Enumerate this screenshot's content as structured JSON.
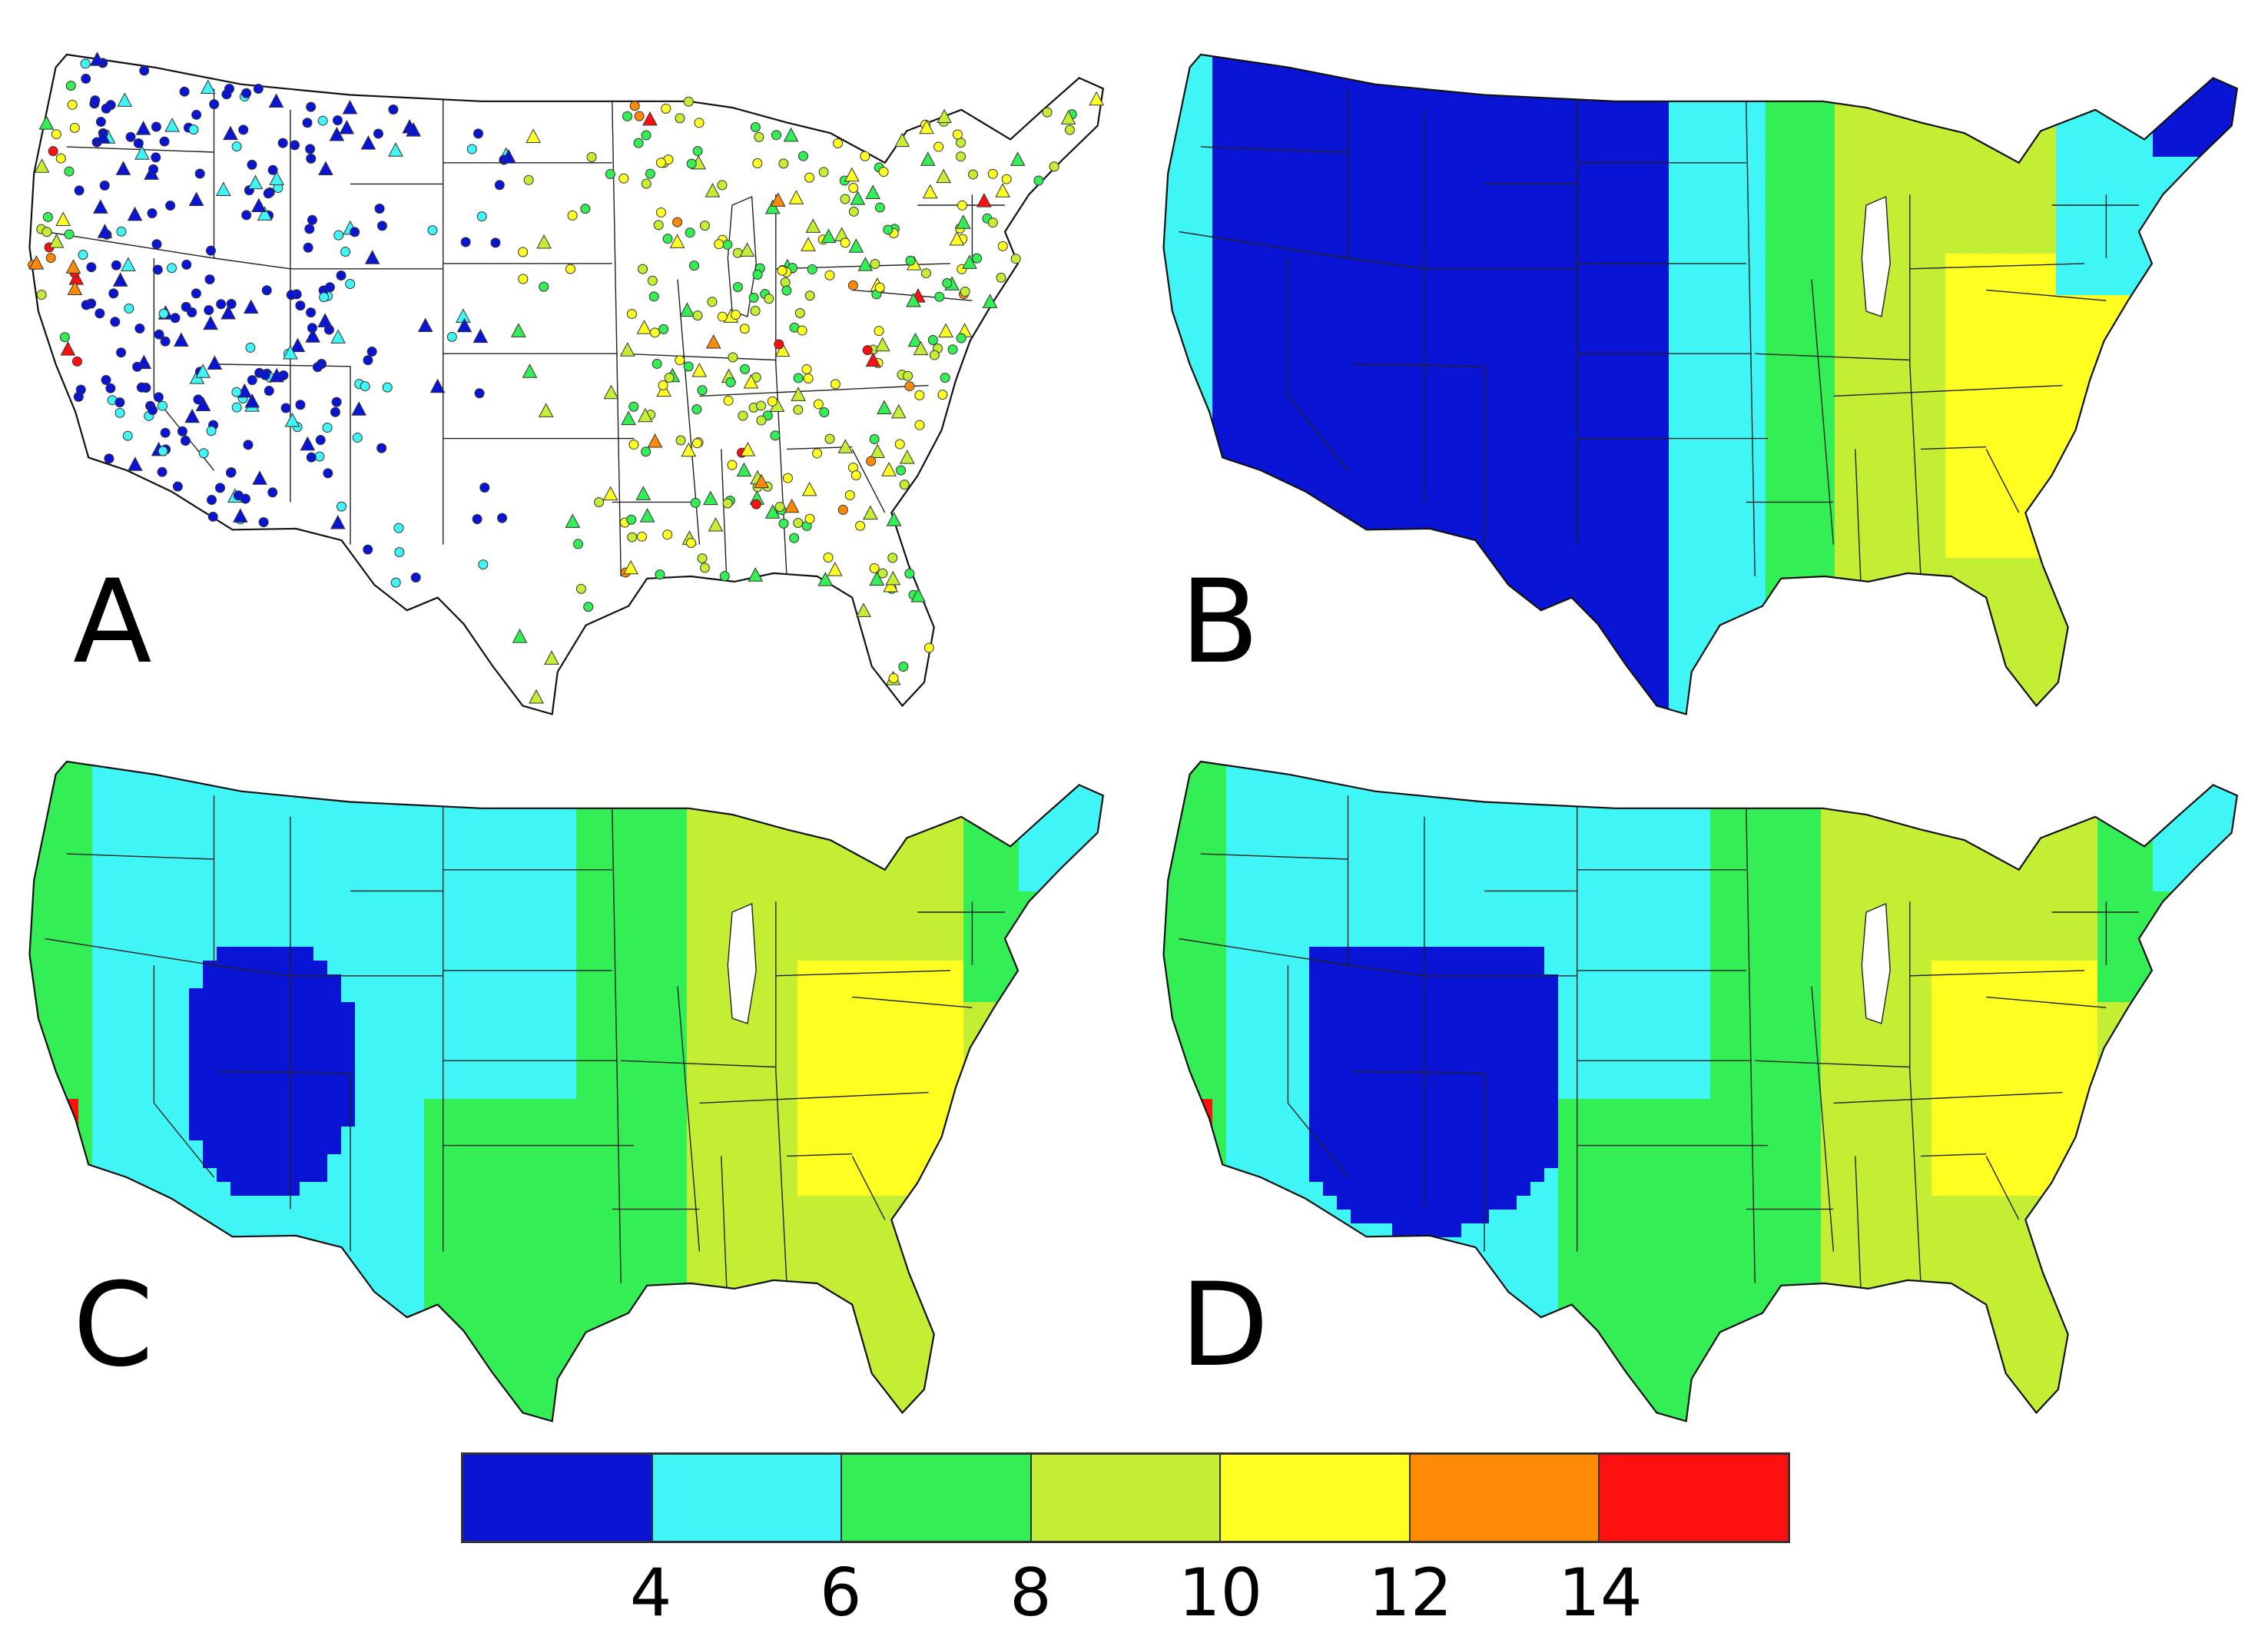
{
  "panels": [
    {
      "label": "A",
      "kind": "stations"
    },
    {
      "label": "B",
      "kind": "field"
    },
    {
      "label": "C",
      "kind": "field"
    },
    {
      "label": "D",
      "kind": "field"
    }
  ],
  "colorbar": {
    "colors": [
      "#0a14d4",
      "#3ff5f5",
      "#33ee55",
      "#c4ee33",
      "#ffff22",
      "#ff8a05",
      "#ff1010"
    ],
    "tick_labels": [
      "4",
      "6",
      "8",
      "10",
      "12",
      "14"
    ]
  }
}
